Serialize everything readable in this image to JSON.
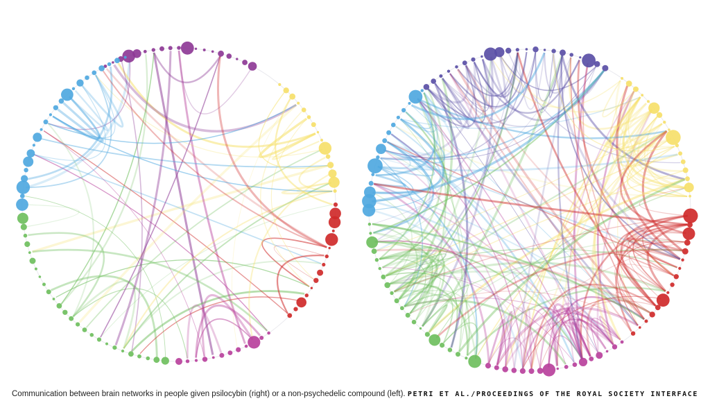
{
  "caption": {
    "text": "Communication between brain networks in people given psilocybin (right) or a non-psychedelic compound (left).",
    "credit": "PETRI ET AL./PROCEEDINGS OF THE ROYAL SOCIETY INTERFACE"
  },
  "network_colors": {
    "purple": "#8e3a96",
    "yellow": "#f6e06a",
    "red": "#cf2a2a",
    "magenta": "#b8419c",
    "green": "#6fbf5e",
    "blue": "#4fa8e0",
    "indigo": "#5a4fa6"
  }
}
